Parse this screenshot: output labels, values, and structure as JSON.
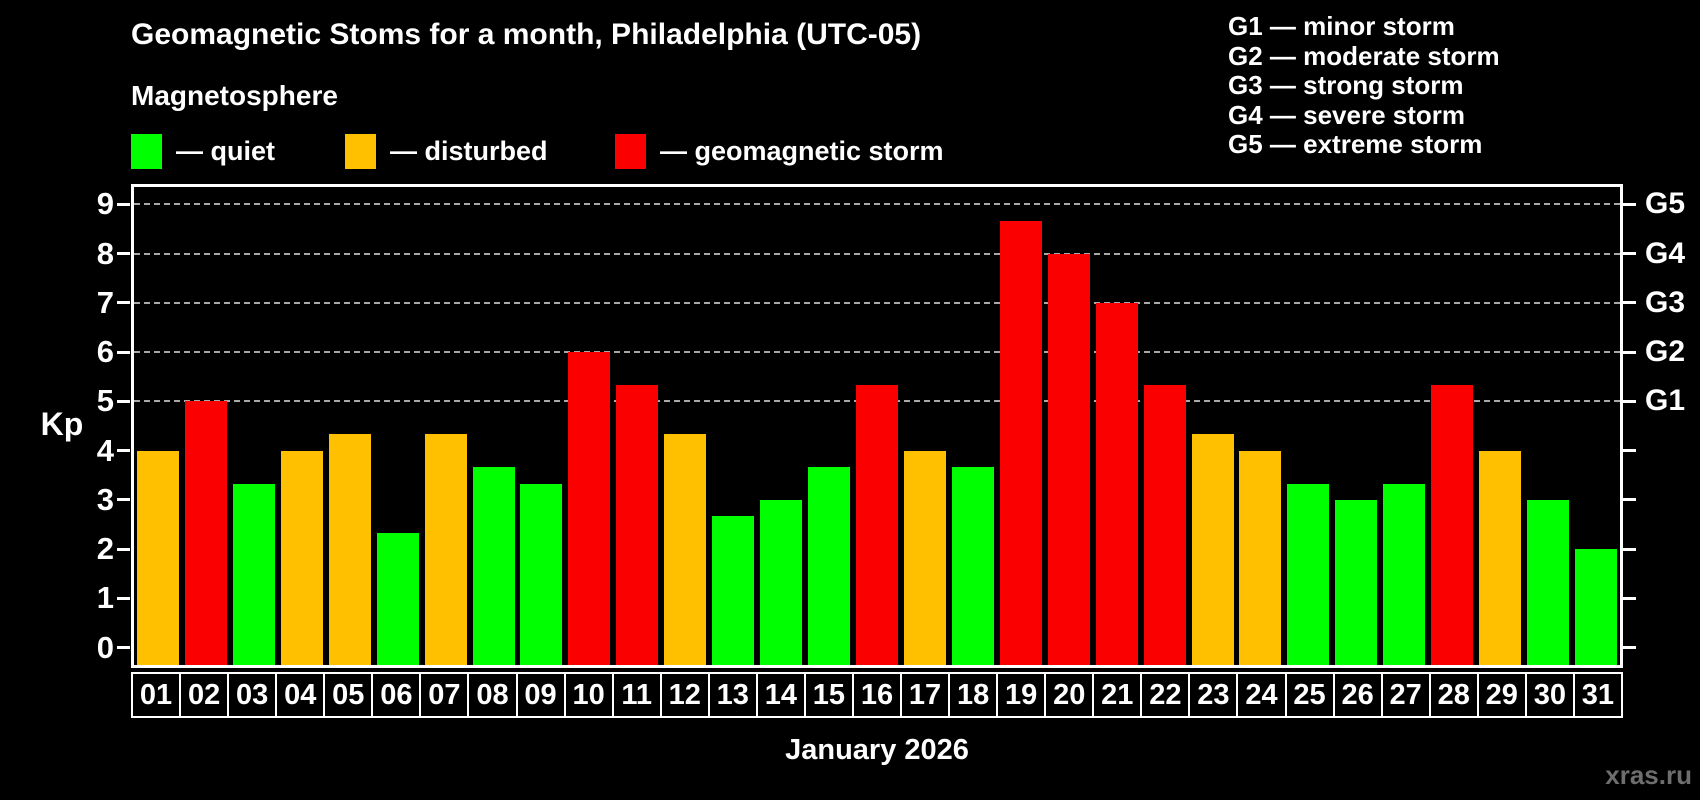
{
  "header": {
    "title": "Geomagnetic Stoms for a month, Philadelphia (UTC-05)",
    "subtitle": "Magnetosphere",
    "watermark": "xras.ru"
  },
  "legend": {
    "items": [
      {
        "key": "quiet",
        "label": "— quiet",
        "color": "#00ff00"
      },
      {
        "key": "disturbed",
        "label": "— disturbed",
        "color": "#ffc000"
      },
      {
        "key": "storm",
        "label": "— geomagnetic storm",
        "color": "#fa0000"
      }
    ]
  },
  "g_scale_legend": [
    "G1 — minor storm",
    "G2 — moderate storm",
    "G3 — strong storm",
    "G4 — severe storm",
    "G5 — extreme storm"
  ],
  "chart_data": {
    "type": "bar",
    "title": "Geomagnetic Stoms for a month, Philadelphia (UTC-05)",
    "xlabel": "January 2026",
    "ylabel": "Kp",
    "ylim": [
      -0.35,
      9.35
    ],
    "yticks": [
      0,
      1,
      2,
      3,
      4,
      5,
      6,
      7,
      8,
      9
    ],
    "gridlines_at": [
      5,
      6,
      7,
      8,
      9
    ],
    "grid": "dashed horizontal at storm levels only",
    "legend_position": "top",
    "right_axis_labels": [
      {
        "value": 5,
        "label": "G1"
      },
      {
        "value": 6,
        "label": "G2"
      },
      {
        "value": 7,
        "label": "G3"
      },
      {
        "value": 8,
        "label": "G4"
      },
      {
        "value": 9,
        "label": "G5"
      }
    ],
    "categories": [
      "01",
      "02",
      "03",
      "04",
      "05",
      "06",
      "07",
      "08",
      "09",
      "10",
      "11",
      "12",
      "13",
      "14",
      "15",
      "16",
      "17",
      "18",
      "19",
      "20",
      "21",
      "22",
      "23",
      "24",
      "25",
      "26",
      "27",
      "28",
      "29",
      "30",
      "31"
    ],
    "values": [
      4,
      5,
      3.33,
      4,
      4.33,
      2.33,
      4.33,
      3.67,
      3.33,
      6,
      5.33,
      4.33,
      2.67,
      3,
      3.67,
      5.33,
      4,
      3.67,
      8.67,
      8,
      7,
      5.33,
      4.33,
      4,
      3.33,
      3,
      3.33,
      5.33,
      4,
      3,
      2
    ],
    "statuses": [
      "disturbed",
      "storm",
      "quiet",
      "disturbed",
      "disturbed",
      "quiet",
      "disturbed",
      "quiet",
      "quiet",
      "storm",
      "storm",
      "disturbed",
      "quiet",
      "quiet",
      "quiet",
      "storm",
      "disturbed",
      "quiet",
      "storm",
      "storm",
      "storm",
      "storm",
      "disturbed",
      "disturbed",
      "quiet",
      "quiet",
      "quiet",
      "storm",
      "disturbed",
      "quiet",
      "quiet"
    ],
    "colors": {
      "quiet": "#00ff00",
      "disturbed": "#ffc000",
      "storm": "#fa0000"
    }
  }
}
